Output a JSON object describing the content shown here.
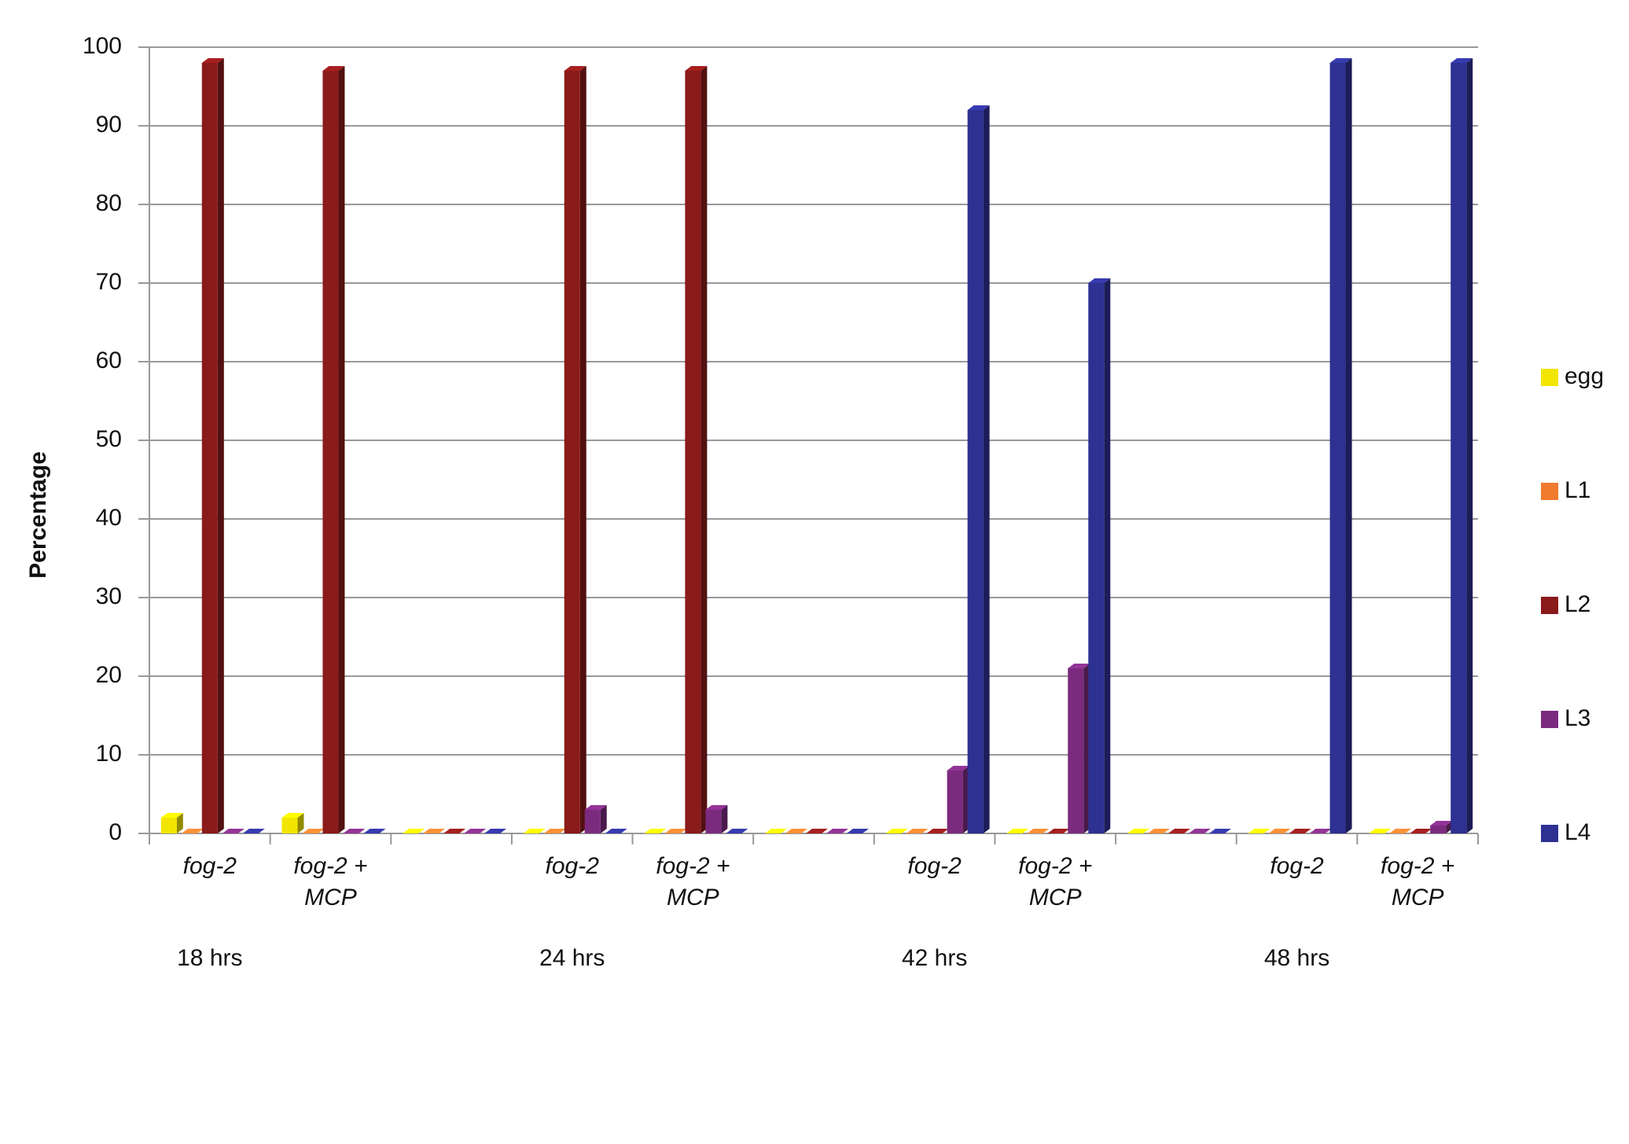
{
  "chart_data": {
    "type": "bar",
    "y_label": "Percentage",
    "categories": [
      "fog-2",
      "fog-2 + MCP",
      null,
      "fog-2",
      "fog-2 + MCP",
      null,
      "fog-2",
      "fog-2 + MCP",
      null,
      "fog-2",
      "fog-2 + MCP"
    ],
    "groups": [
      "18 hrs",
      "24 hrs",
      "42 hrs",
      "48 hrs"
    ],
    "series": [
      {
        "name": "egg",
        "color": "#f2e600",
        "values": [
          2,
          2,
          0,
          0,
          0,
          0,
          0,
          0,
          0,
          0,
          0
        ]
      },
      {
        "name": "L1",
        "color": "#f07a2e",
        "values": [
          0,
          0,
          0,
          0,
          0,
          0,
          0,
          0,
          0,
          0,
          0
        ]
      },
      {
        "name": "L2",
        "color": "#8b1a1a",
        "values": [
          98,
          97,
          0,
          97,
          97,
          0,
          0,
          0,
          0,
          0,
          0
        ]
      },
      {
        "name": "L3",
        "color": "#7b2b7e",
        "values": [
          0,
          0,
          0,
          3,
          3,
          0,
          8,
          21,
          0,
          0,
          1
        ]
      },
      {
        "name": "L4",
        "color": "#2e3192",
        "values": [
          0,
          0,
          0,
          0,
          0,
          0,
          92,
          70,
          0,
          98,
          98
        ]
      }
    ],
    "ylim": [
      0,
      100
    ],
    "yticks": [
      0,
      10,
      20,
      30,
      40,
      50,
      60,
      70,
      80,
      90,
      100
    ],
    "grid": true,
    "legend": "right"
  }
}
